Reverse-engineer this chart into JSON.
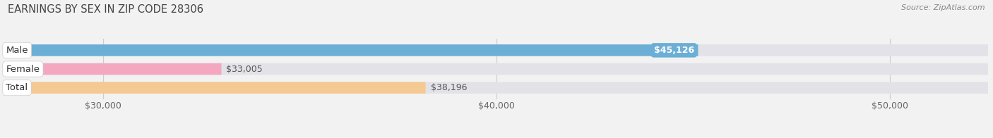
{
  "title": "EARNINGS BY SEX IN ZIP CODE 28306",
  "source": "Source: ZipAtlas.com",
  "categories": [
    "Male",
    "Female",
    "Total"
  ],
  "values": [
    45126,
    33005,
    38196
  ],
  "bar_colors": [
    "#6baed6",
    "#f4a8c0",
    "#f5c992"
  ],
  "bar_labels": [
    "$45,126",
    "$33,005",
    "$38,196"
  ],
  "value_label_inside": [
    true,
    false,
    false
  ],
  "xmin": 27500,
  "xmax": 52500,
  "xticks": [
    30000,
    40000,
    50000
  ],
  "xtick_labels": [
    "$30,000",
    "$40,000",
    "$50,000"
  ],
  "background_color": "#f2f2f2",
  "bar_background_color": "#e2e2e8",
  "title_fontsize": 10.5,
  "tick_fontsize": 9,
  "label_fontsize": 9,
  "category_fontsize": 9.5,
  "bar_height": 0.62
}
